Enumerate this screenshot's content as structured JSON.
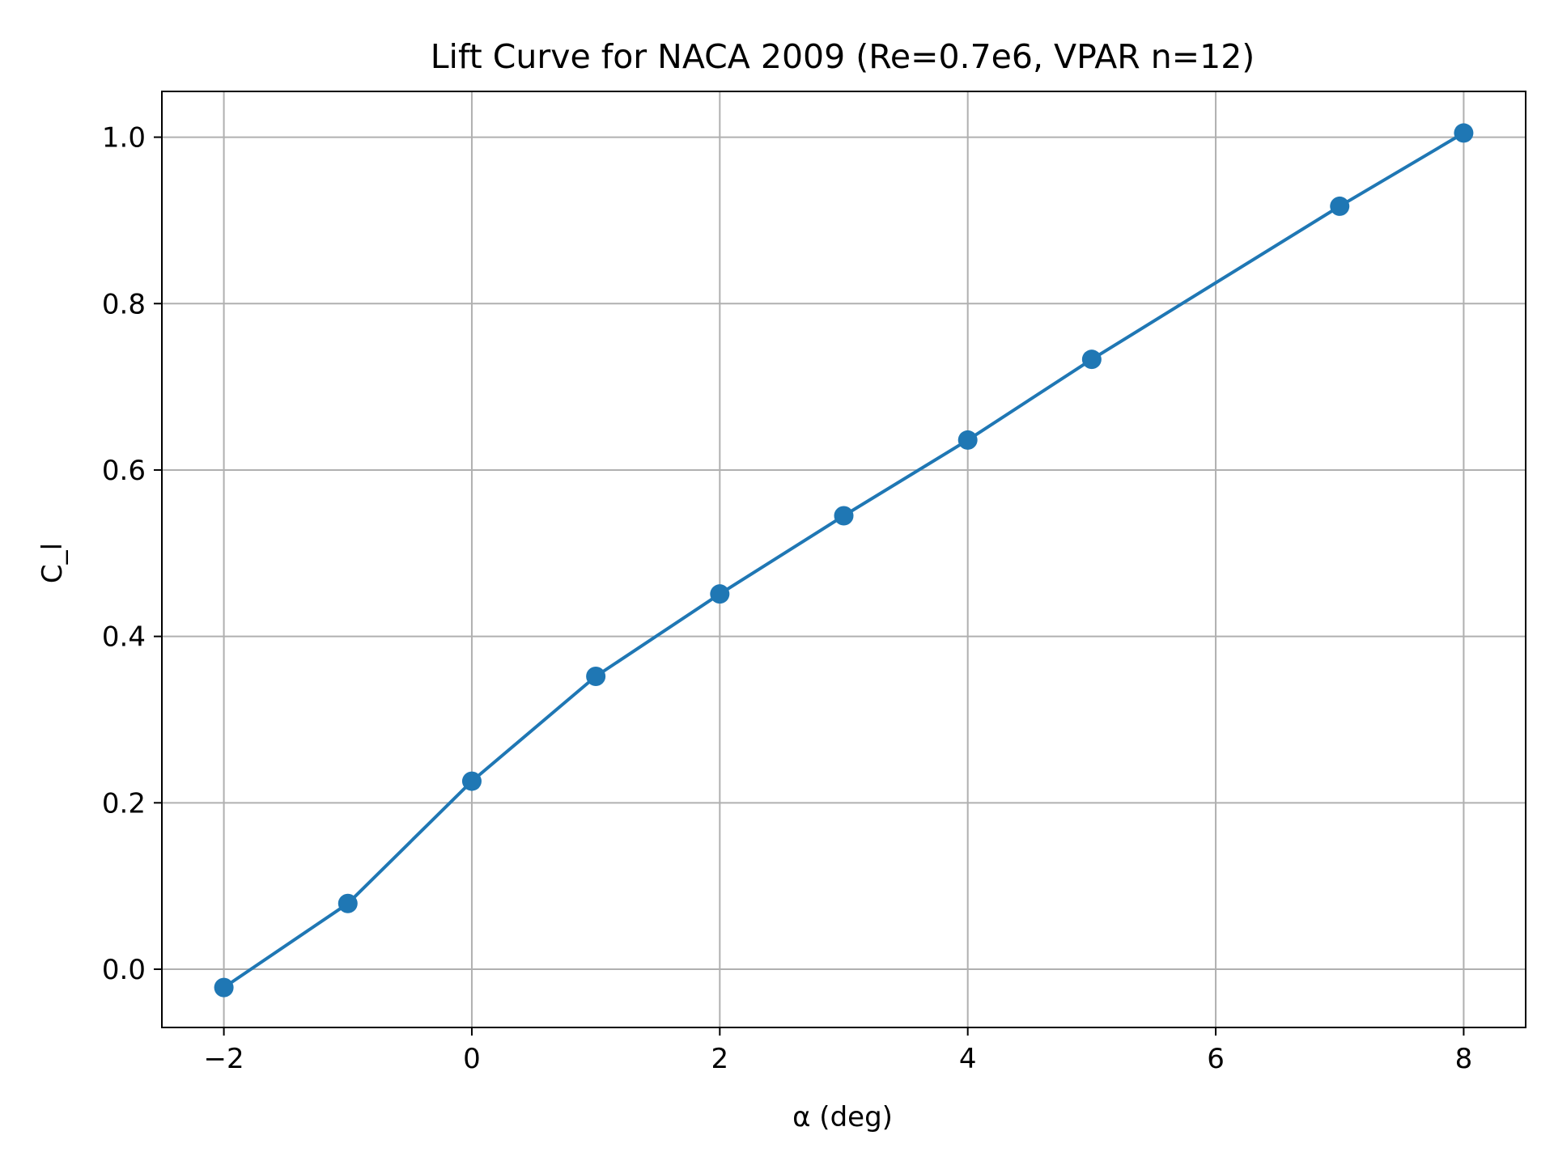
{
  "chart_data": {
    "type": "line",
    "title": "Lift Curve for NACA 2009 (Re=0.7e6, VPAR n=12)",
    "xlabel": "α (deg)",
    "ylabel": "C_l",
    "xlim": [
      -2.5,
      8.5
    ],
    "ylim": [
      -0.07,
      1.055
    ],
    "grid": true,
    "x_ticks": [
      -2,
      0,
      2,
      4,
      6,
      8
    ],
    "x_tick_labels": [
      "−2",
      "0",
      "2",
      "4",
      "6",
      "8"
    ],
    "y_ticks": [
      0.0,
      0.2,
      0.4,
      0.6,
      0.8,
      1.0
    ],
    "y_tick_labels": [
      "0.0",
      "0.2",
      "0.4",
      "0.6",
      "0.8",
      "1.0"
    ],
    "series": [
      {
        "color": "#1f77b4",
        "marker": "circle",
        "x": [
          -2,
          -1,
          0,
          1,
          2,
          3,
          4,
          5,
          7,
          8
        ],
        "y": [
          -0.022,
          0.079,
          0.226,
          0.352,
          0.451,
          0.545,
          0.636,
          0.733,
          0.917,
          1.005
        ]
      }
    ]
  }
}
